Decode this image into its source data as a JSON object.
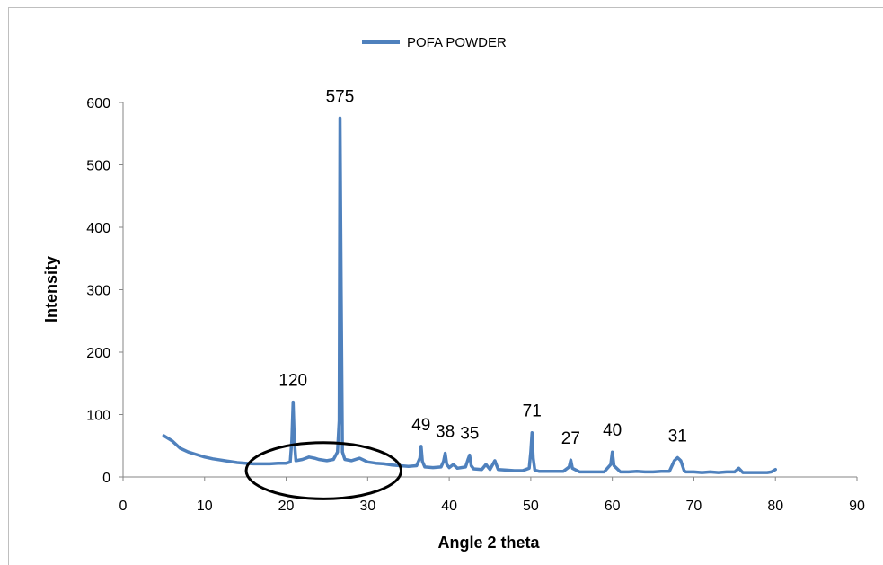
{
  "chart_data": {
    "type": "line",
    "xlabel": "Angle 2 theta",
    "ylabel": "Intensity",
    "xlim": [
      0,
      90
    ],
    "ylim": [
      0,
      600
    ],
    "xticks": [
      0,
      10,
      20,
      30,
      40,
      50,
      60,
      70,
      80,
      90
    ],
    "yticks": [
      0,
      100,
      200,
      300,
      400,
      500,
      600
    ],
    "grid": false,
    "legend_position": "top-center",
    "series": [
      {
        "name": "POFA POWDER",
        "color": "#4f81bd",
        "points": [
          [
            5,
            66
          ],
          [
            5.5,
            62
          ],
          [
            6,
            58
          ],
          [
            7,
            46
          ],
          [
            8,
            40
          ],
          [
            9,
            36
          ],
          [
            10,
            32
          ],
          [
            11,
            29
          ],
          [
            12,
            27
          ],
          [
            13,
            25
          ],
          [
            14,
            23
          ],
          [
            15,
            22
          ],
          [
            16,
            21
          ],
          [
            17,
            21
          ],
          [
            18,
            21
          ],
          [
            19,
            22
          ],
          [
            20,
            22
          ],
          [
            20.5,
            24
          ],
          [
            20.7,
            60
          ],
          [
            20.85,
            120
          ],
          [
            21.0,
            60
          ],
          [
            21.2,
            26
          ],
          [
            22,
            28
          ],
          [
            22.8,
            32
          ],
          [
            23.5,
            30
          ],
          [
            24,
            28
          ],
          [
            25,
            26
          ],
          [
            25.8,
            28
          ],
          [
            26.3,
            40
          ],
          [
            26.5,
            90
          ],
          [
            26.6,
            575
          ],
          [
            26.75,
            300
          ],
          [
            26.9,
            40
          ],
          [
            27.2,
            28
          ],
          [
            28,
            26
          ],
          [
            29,
            30
          ],
          [
            30,
            24
          ],
          [
            31,
            22
          ],
          [
            32,
            21
          ],
          [
            33,
            19
          ],
          [
            34,
            18
          ],
          [
            35,
            17
          ],
          [
            36,
            18
          ],
          [
            36.4,
            30
          ],
          [
            36.55,
            49
          ],
          [
            36.7,
            25
          ],
          [
            37,
            16
          ],
          [
            38,
            15
          ],
          [
            39,
            16
          ],
          [
            39.3,
            25
          ],
          [
            39.5,
            38
          ],
          [
            39.7,
            20
          ],
          [
            40,
            15
          ],
          [
            40.5,
            20
          ],
          [
            41,
            14
          ],
          [
            42,
            16
          ],
          [
            42.3,
            28
          ],
          [
            42.5,
            35
          ],
          [
            42.7,
            18
          ],
          [
            43,
            13
          ],
          [
            44,
            12
          ],
          [
            44.5,
            20
          ],
          [
            45,
            12
          ],
          [
            45.6,
            26
          ],
          [
            46,
            12
          ],
          [
            47,
            11
          ],
          [
            48,
            10
          ],
          [
            49,
            10
          ],
          [
            49.8,
            14
          ],
          [
            50.0,
            40
          ],
          [
            50.15,
            71
          ],
          [
            50.3,
            30
          ],
          [
            50.5,
            11
          ],
          [
            51,
            9
          ],
          [
            52,
            9
          ],
          [
            53,
            9
          ],
          [
            54,
            9
          ],
          [
            54.7,
            16
          ],
          [
            54.9,
            27
          ],
          [
            55.1,
            14
          ],
          [
            56,
            8
          ],
          [
            57,
            8
          ],
          [
            58,
            8
          ],
          [
            59,
            8
          ],
          [
            59.8,
            20
          ],
          [
            60.0,
            40
          ],
          [
            60.2,
            18
          ],
          [
            61,
            8
          ],
          [
            62,
            8
          ],
          [
            63,
            9
          ],
          [
            64,
            8
          ],
          [
            65,
            8
          ],
          [
            66,
            9
          ],
          [
            67,
            9
          ],
          [
            67.6,
            26
          ],
          [
            68,
            31
          ],
          [
            68.4,
            26
          ],
          [
            68.8,
            10
          ],
          [
            69,
            8
          ],
          [
            70,
            8
          ],
          [
            71,
            7
          ],
          [
            72,
            8
          ],
          [
            73,
            7
          ],
          [
            74,
            8
          ],
          [
            75,
            8
          ],
          [
            75.5,
            14
          ],
          [
            76,
            7
          ],
          [
            77,
            7
          ],
          [
            78,
            7
          ],
          [
            79,
            7
          ],
          [
            79.5,
            8
          ],
          [
            80,
            12
          ]
        ]
      }
    ],
    "annotations": [
      {
        "text": "120",
        "x": 20.85,
        "y": 120
      },
      {
        "text": "575",
        "x": 26.6,
        "y": 575
      },
      {
        "text": "49",
        "x": 36.55,
        "y": 49
      },
      {
        "text": "38",
        "x": 39.5,
        "y": 38
      },
      {
        "text": "35",
        "x": 42.5,
        "y": 35
      },
      {
        "text": "71",
        "x": 50.15,
        "y": 71
      },
      {
        "text": "27",
        "x": 54.9,
        "y": 27
      },
      {
        "text": "40",
        "x": 60.0,
        "y": 40
      },
      {
        "text": "31",
        "x": 68,
        "y": 31
      }
    ],
    "highlight": {
      "shape": "ellipse",
      "center_x": 24.6,
      "center_y": 10,
      "radius_x": 9.5,
      "radius_y": 45,
      "color": "#000000"
    }
  }
}
